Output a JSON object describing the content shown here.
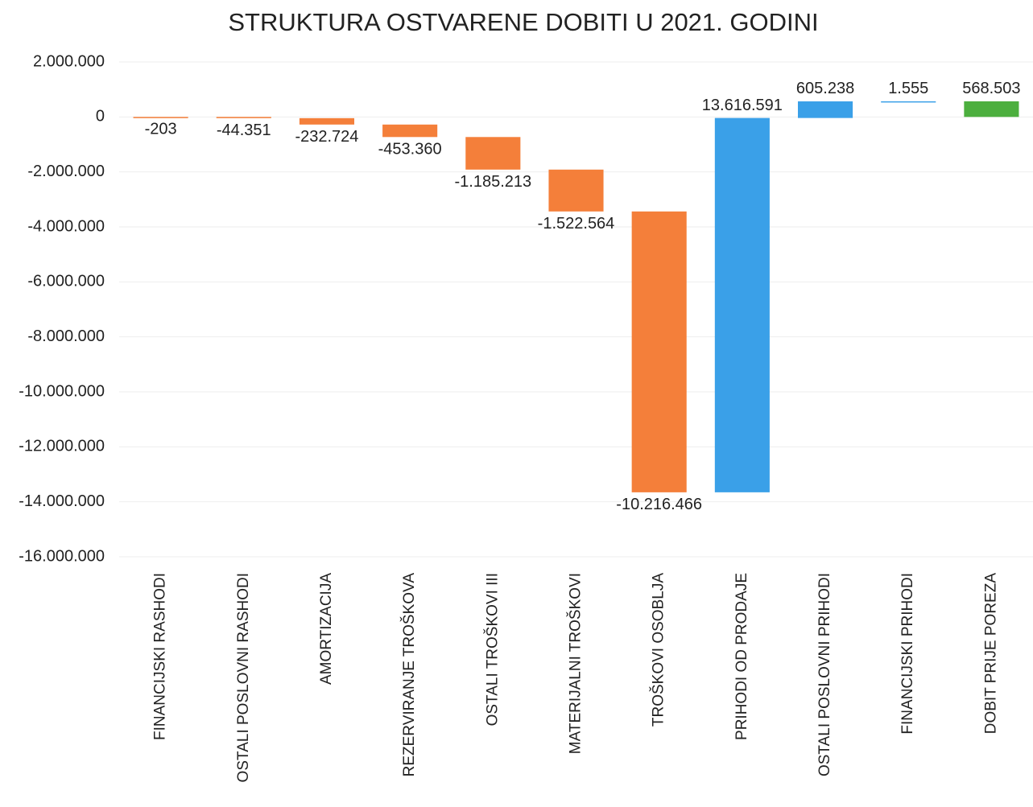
{
  "chart_data": {
    "type": "waterfall",
    "title": "STRUKTURA OSTVARENE DOBITI U  2021. GODINI",
    "categories": [
      "FINANCIJSKI RASHODI",
      "OSTALI POSLOVNI RASHODI",
      "AMORTIZACIJA",
      "REZERVIRANJE TROŠKOVA",
      "OSTALI TROŠKOVI III",
      "MATERIJALNI TROŠKOVI",
      "TROŠKOVI OSOBLJA",
      "PRIHODI OD PRODAJE",
      "OSTALI POSLOVNI PRIHODI",
      "FINANCIJSKI PRIHODI",
      "DOBIT PRIJE POREZA"
    ],
    "values": [
      -203,
      -44351,
      -232724,
      -453360,
      -1185213,
      -1522564,
      -10216466,
      13616591,
      605238,
      1555,
      568503
    ],
    "value_labels": [
      "-203",
      "-44.351",
      "-232.724",
      "-453.360",
      "-1.185.213",
      "-1.522.564",
      "-10.216.466",
      "13.616.591",
      "605.238",
      "1.555",
      "568.503"
    ],
    "colors": [
      "#f47f3a",
      "#f47f3a",
      "#f47f3a",
      "#f47f3a",
      "#f47f3a",
      "#f47f3a",
      "#f47f3a",
      "#3aa0e8",
      "#3aa0e8",
      "#3aa0e8",
      "#4caf3e"
    ],
    "ylim": [
      -16000000,
      2000000
    ],
    "yticks": [
      {
        "value": 2000000,
        "label": "2.000.000"
      },
      0,
      {
        "value": -2000000,
        "label": "-2.000.000"
      },
      {
        "value": -4000000,
        "label": "-4.000.000"
      },
      {
        "value": -6000000,
        "label": "-6.000.000"
      },
      {
        "value": -8000000,
        "label": "-8.000.000"
      },
      {
        "value": -10000000,
        "label": "-10.000.000"
      },
      {
        "value": -12000000,
        "label": "-12.000.000"
      },
      {
        "value": -14000000,
        "label": "-14.000.000"
      },
      {
        "value": -16000000,
        "label": "-16.000.000"
      }
    ],
    "grid": true
  }
}
